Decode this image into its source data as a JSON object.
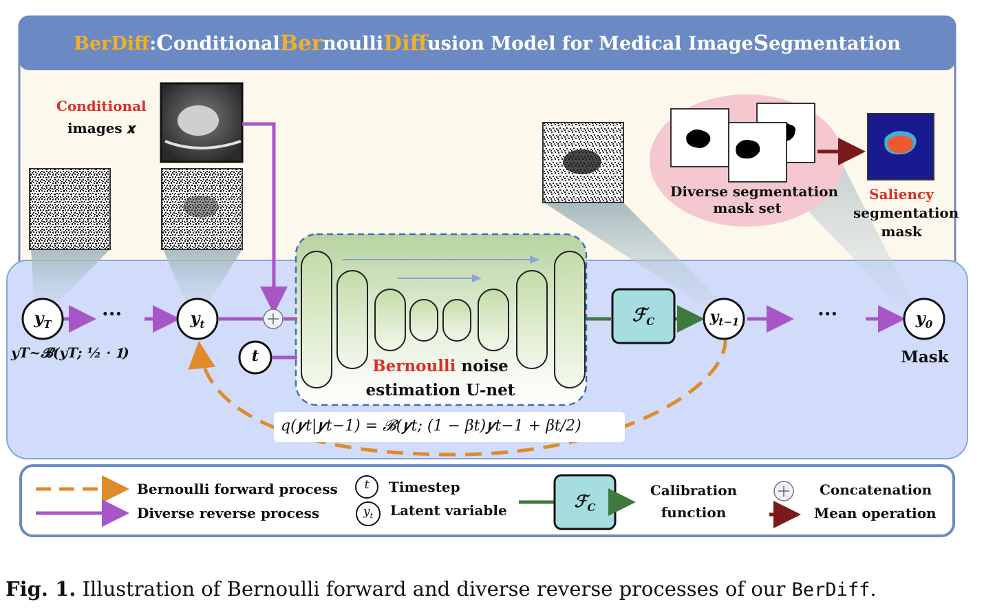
{
  "title": {
    "highlight1": "BerDiff",
    "rest_before": ": ",
    "c1": "C",
    "t1": "onditional ",
    "c2": "Ber",
    "t2": "noulli ",
    "c3": "Diff",
    "t3": "usion Model for Medical Image ",
    "c4": "S",
    "t4": "egmentation"
  },
  "labels": {
    "conditional": "Conditional",
    "images_x": "images 𝒙",
    "diverse_mask_set_1": "Diverse segmentation",
    "diverse_mask_set_2": "mask set",
    "saliency": "Saliency",
    "saliency_2": "segmentation",
    "saliency_3": "mask",
    "unet_red": "Bernoulli",
    "unet_1": " noise",
    "unet_2": "estimation U-net",
    "mask": "Mask",
    "fc": "ℱ",
    "fc_sub": "C",
    "yT_dist": "𝒚T~𝓑(𝒚T; ½ · 𝟏)",
    "forward_eq": "q(𝒚t|𝒚t−1) = 𝓑(𝒚t; (1 − βt)𝒚t−1 + βt/2)",
    "dots": "···"
  },
  "nodes": {
    "yT": "y",
    "yT_sub": "T",
    "yt": "y",
    "yt_sub": "t",
    "ytm1": "y",
    "ytm1_sub": "t−1",
    "y0": "y",
    "y0_sub": "0",
    "t": "t"
  },
  "legend": {
    "forward": "Bernoulli forward process",
    "reverse": "Diverse reverse process",
    "timestep": "Timestep",
    "latent": "Latent variable",
    "calib_1": "Calibration",
    "calib_2": "function",
    "concat": "Concatenation",
    "mean": "Mean operation",
    "t_sym": "t",
    "yt_sym": "y",
    "yt_sub": "t"
  },
  "caption": {
    "bold": "Fig. 1.",
    "text": " Illustration of Bernoulli forward and diverse reverse processes of our ",
    "mono": "BerDiff",
    "end": "."
  },
  "colors": {
    "title_bar": "#6b8ac3",
    "top_bg": "#fdf8ec",
    "blue_panel": "#d0dcfa",
    "purple": "#a855c8",
    "orange": "#e08a2a",
    "green": "#3e7a3e",
    "dark_red": "#7a1a1a",
    "calib_fill": "#a6dde0",
    "accent_red": "#d8302a",
    "accent_gold": "#f0b02a"
  }
}
